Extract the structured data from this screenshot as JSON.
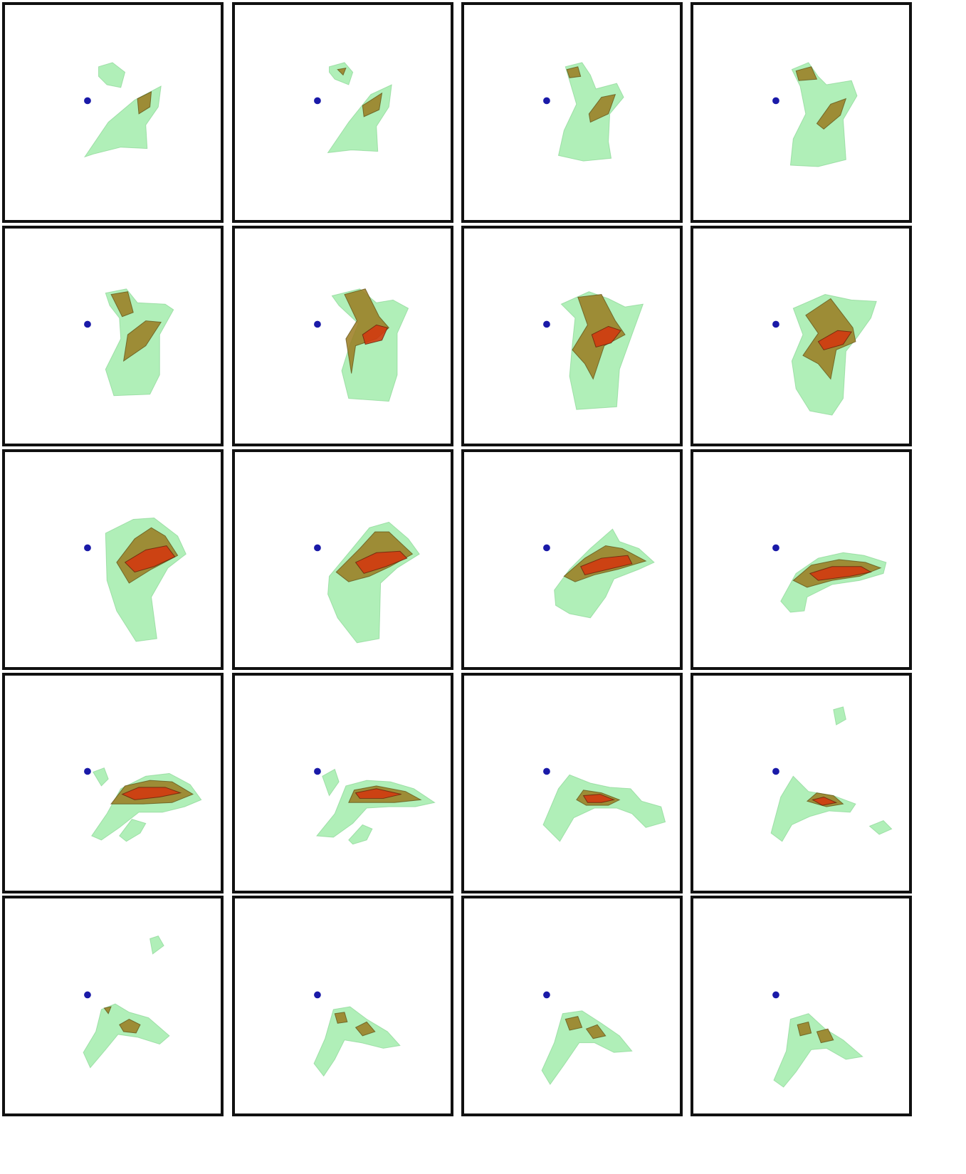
{
  "figure": {
    "rows": 5,
    "cols": 4,
    "colors": {
      "background": "#ffffff",
      "frame": "#111111",
      "marker": "#1a1aa8",
      "outer_isosurface": "#8fe89a",
      "middle_isosurface": "#9a7a1e",
      "inner_isosurface": "#d23a10"
    },
    "frames": [
      {
        "frame": 1,
        "inner_level": 0
      },
      {
        "frame": 2,
        "inner_level": 0
      },
      {
        "frame": 3,
        "inner_level": 0
      },
      {
        "frame": 4,
        "inner_level": 0
      },
      {
        "frame": 5,
        "inner_level": 0
      },
      {
        "frame": 6,
        "inner_level": 1
      },
      {
        "frame": 7,
        "inner_level": 1
      },
      {
        "frame": 8,
        "inner_level": 1
      },
      {
        "frame": 9,
        "inner_level": 1
      },
      {
        "frame": 10,
        "inner_level": 1
      },
      {
        "frame": 11,
        "inner_level": 1
      },
      {
        "frame": 12,
        "inner_level": 1
      },
      {
        "frame": 13,
        "inner_level": 1
      },
      {
        "frame": 14,
        "inner_level": 1
      },
      {
        "frame": 15,
        "inner_level": 0
      },
      {
        "frame": 16,
        "inner_level": 0
      },
      {
        "frame": 17,
        "inner_level": 0
      },
      {
        "frame": 18,
        "inner_level": 0
      },
      {
        "frame": 19,
        "inner_level": 0
      },
      {
        "frame": 20,
        "inner_level": 0
      }
    ]
  }
}
